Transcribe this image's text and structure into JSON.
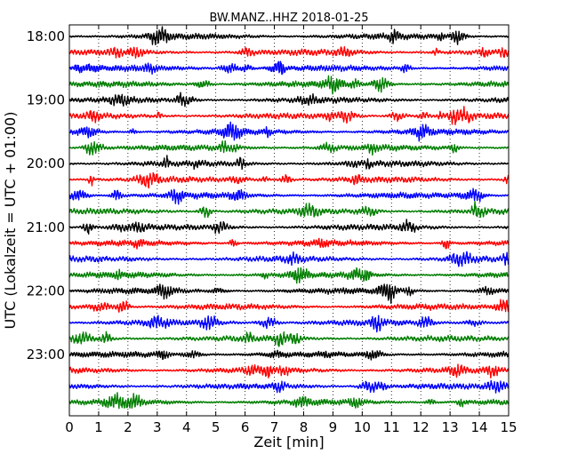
{
  "chart_data": {
    "type": "line",
    "title": "BW.MANZ..HHZ 2018-01-25",
    "xlabel": "Zeit  [min]",
    "ylabel": "UTC (Lokalzeit = UTC + 01:00)",
    "xlim": [
      0,
      15
    ],
    "xticks": [
      0,
      1,
      2,
      3,
      4,
      5,
      6,
      7,
      8,
      9,
      10,
      11,
      12,
      13,
      14,
      15
    ],
    "ytick_labels": [
      "18:00",
      "19:00",
      "20:00",
      "21:00",
      "22:00",
      "23:00"
    ],
    "trace_interval_min": 15,
    "trace_count": 24,
    "grid": "vertical dotted",
    "colors": [
      "#000000",
      "#ff0000",
      "#0000ff",
      "#007f00"
    ],
    "series": [
      {
        "start": "18:00",
        "amplitude": 1.0
      },
      {
        "start": "18:15",
        "amplitude": 1.0
      },
      {
        "start": "18:30",
        "amplitude": 1.0
      },
      {
        "start": "18:45",
        "amplitude": 1.0
      },
      {
        "start": "19:00",
        "amplitude": 1.0
      },
      {
        "start": "19:15",
        "amplitude": 1.0
      },
      {
        "start": "19:30",
        "amplitude": 1.0
      },
      {
        "start": "19:45",
        "amplitude": 1.0
      },
      {
        "start": "20:00",
        "amplitude": 1.0
      },
      {
        "start": "20:15",
        "amplitude": 1.0
      },
      {
        "start": "20:30",
        "amplitude": 1.0
      },
      {
        "start": "20:45",
        "amplitude": 1.0
      },
      {
        "start": "21:00",
        "amplitude": 1.0
      },
      {
        "start": "21:15",
        "amplitude": 1.0
      },
      {
        "start": "21:30",
        "amplitude": 1.0
      },
      {
        "start": "21:45",
        "amplitude": 1.0
      },
      {
        "start": "22:00",
        "amplitude": 1.0
      },
      {
        "start": "22:15",
        "amplitude": 1.0
      },
      {
        "start": "22:30",
        "amplitude": 1.0
      },
      {
        "start": "22:45",
        "amplitude": 1.0
      },
      {
        "start": "23:00",
        "amplitude": 1.0
      },
      {
        "start": "23:15",
        "amplitude": 1.0
      },
      {
        "start": "23:30",
        "amplitude": 1.0
      },
      {
        "start": "23:45",
        "amplitude": 1.0
      }
    ]
  }
}
